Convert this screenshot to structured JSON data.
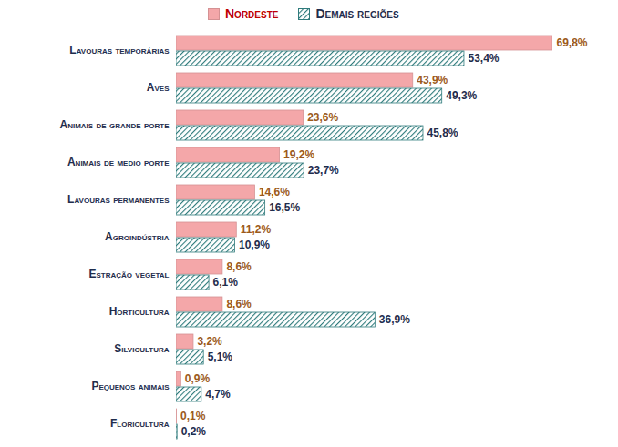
{
  "chart_data": {
    "type": "bar",
    "orientation": "horizontal",
    "categories": [
      "Lavouras temporárias",
      "Aves",
      "Animais de grande porte",
      "Animais de medio porte",
      "Lavouras permanentes",
      "Agroindústria",
      "Estração vegetal",
      "Horticultura",
      "Silvicultura",
      "Pequenos animais",
      "Floricultura"
    ],
    "series": [
      {
        "name": "Nordeste",
        "color": "#f4a7a9",
        "values": [
          69.8,
          43.9,
          23.6,
          19.2,
          14.6,
          11.2,
          8.6,
          8.6,
          3.2,
          0.9,
          0.1
        ],
        "value_labels": [
          "69,8%",
          "43,9%",
          "23,6%",
          "19,2%",
          "14,6%",
          "11,2%",
          "8,6%",
          "8,6%",
          "3,2%",
          "0,9%",
          "0,1%"
        ]
      },
      {
        "name": "Demais regiões",
        "color": "#2f7b7c",
        "values": [
          53.4,
          49.3,
          45.8,
          23.7,
          16.5,
          10.9,
          6.1,
          36.9,
          5.1,
          4.7,
          0.2
        ],
        "value_labels": [
          "53,4%",
          "49,3%",
          "45,8%",
          "23,7%",
          "16,5%",
          "10,9%",
          "6,1%",
          "36,9%",
          "5,1%",
          "4,7%",
          "0,2%"
        ]
      }
    ],
    "data_labels": true,
    "tick_labels": "y",
    "legend": "top",
    "grid": false
  }
}
